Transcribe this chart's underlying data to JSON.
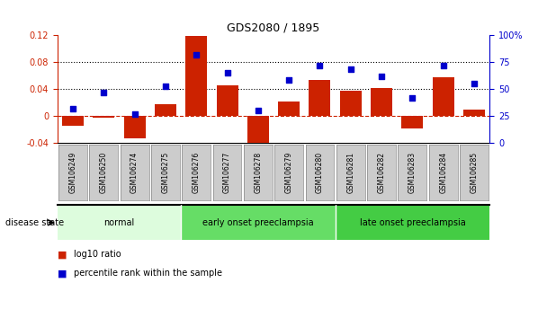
{
  "title": "GDS2080 / 1895",
  "samples": [
    "GSM106249",
    "GSM106250",
    "GSM106274",
    "GSM106275",
    "GSM106276",
    "GSM106277",
    "GSM106278",
    "GSM106279",
    "GSM106280",
    "GSM106281",
    "GSM106282",
    "GSM106283",
    "GSM106284",
    "GSM106285"
  ],
  "log10_ratio": [
    -0.015,
    -0.003,
    -0.033,
    0.018,
    0.118,
    0.045,
    -0.055,
    0.022,
    0.054,
    0.037,
    0.042,
    -0.018,
    0.058,
    0.01
  ],
  "percentile_rank": [
    32,
    47,
    27,
    53,
    82,
    65,
    30,
    58,
    72,
    68,
    62,
    42,
    72,
    55
  ],
  "groups": [
    {
      "label": "normal",
      "start": 0,
      "end": 4,
      "color": "#ddfcdd"
    },
    {
      "label": "early onset preeclampsia",
      "start": 4,
      "end": 9,
      "color": "#66dd66"
    },
    {
      "label": "late onset preeclampsia",
      "start": 9,
      "end": 14,
      "color": "#44cc44"
    }
  ],
  "bar_color": "#cc2200",
  "dot_color": "#0000cc",
  "left_ylim": [
    -0.04,
    0.12
  ],
  "right_ylim": [
    0,
    100
  ],
  "left_yticks": [
    -0.04,
    0,
    0.04,
    0.08,
    0.12
  ],
  "right_yticks": [
    0,
    25,
    50,
    75,
    100
  ],
  "left_ytick_labels": [
    "-0.04",
    "0",
    "0.04",
    "0.08",
    "0.12"
  ],
  "right_ytick_labels": [
    "0",
    "25",
    "50",
    "75",
    "100%"
  ],
  "hlines": [
    0.04,
    0.08
  ],
  "zero_line_color": "#cc2200",
  "hline_color": "#000000",
  "background_color": "#ffffff",
  "legend_log10": "log10 ratio",
  "legend_percentile": "percentile rank within the sample",
  "disease_state_label": "disease state",
  "tick_box_color": "#cccccc",
  "tick_box_edge": "#888888"
}
